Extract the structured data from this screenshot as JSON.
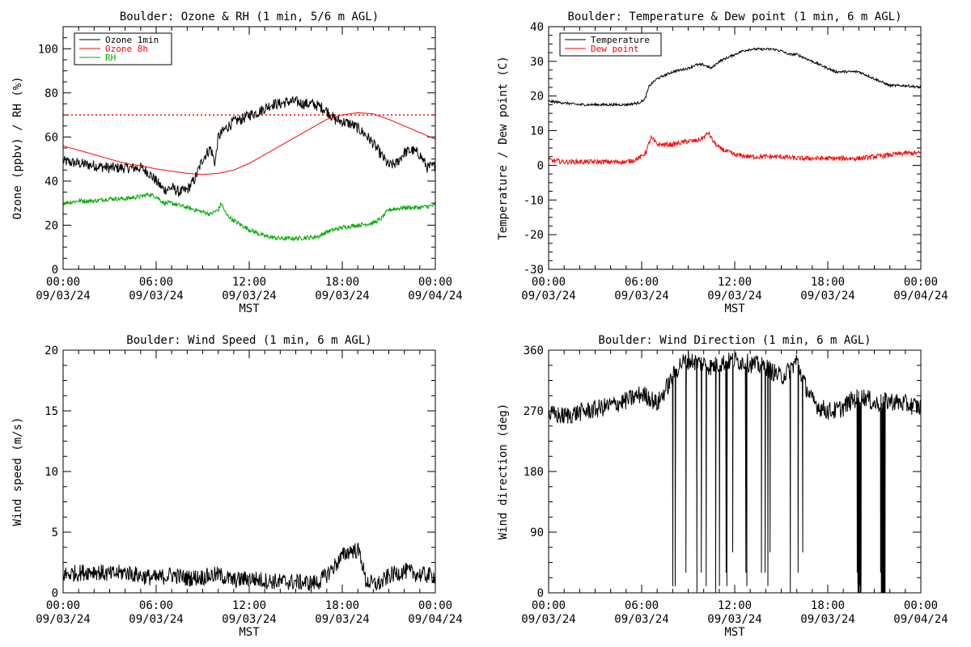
{
  "colors": {
    "black": "#000000",
    "red": "#ff0000",
    "green": "#00aa00"
  },
  "x_axis": {
    "ticks": [
      {
        "top": "00:00",
        "bottom": "09/03/24"
      },
      {
        "top": "06:00",
        "bottom": "09/03/24"
      },
      {
        "top": "12:00",
        "bottom": "09/03/24"
      },
      {
        "top": "18:00",
        "bottom": "09/03/24"
      },
      {
        "top": "00:00",
        "bottom": "09/04/24"
      }
    ],
    "label": "MST",
    "unit": "hours since 00:00 09/03/24",
    "range": [
      0,
      24
    ]
  },
  "chart_data": [
    {
      "type": "line",
      "title": "Boulder: Ozone & RH (1 min, 5/6 m AGL)",
      "ylabel": "Ozone (ppbv) / RH (%)",
      "xlabel": "MST",
      "xlim": [
        0,
        24
      ],
      "ylim": [
        0,
        110
      ],
      "yticks": [
        0,
        20,
        40,
        60,
        80,
        100
      ],
      "legend_position": "top-left",
      "reference_line": {
        "y": 70,
        "style": "dotted",
        "color": "#ff0000"
      },
      "series": [
        {
          "name": "Ozone 1min",
          "color": "#000000",
          "noise": 2.5,
          "points": [
            [
              0,
              49
            ],
            [
              1,
              48
            ],
            [
              2,
              47
            ],
            [
              3,
              46
            ],
            [
              4,
              46
            ],
            [
              5,
              46
            ],
            [
              5.5,
              44
            ],
            [
              6,
              40
            ],
            [
              6.5,
              36
            ],
            [
              7,
              37
            ],
            [
              7.5,
              35
            ],
            [
              8,
              36
            ],
            [
              8.5,
              41
            ],
            [
              9,
              50
            ],
            [
              9.5,
              55
            ],
            [
              9.8,
              48
            ],
            [
              10,
              60
            ],
            [
              10.5,
              64
            ],
            [
              11,
              67
            ],
            [
              11.5,
              68
            ],
            [
              12,
              70
            ],
            [
              12.5,
              71
            ],
            [
              13,
              73
            ],
            [
              13.5,
              75
            ],
            [
              14,
              75
            ],
            [
              14.5,
              76
            ],
            [
              15,
              76
            ],
            [
              15.5,
              75
            ],
            [
              16,
              75
            ],
            [
              16.5,
              74
            ],
            [
              17,
              72
            ],
            [
              17.5,
              68
            ],
            [
              18,
              67
            ],
            [
              18.5,
              66
            ],
            [
              19,
              64
            ],
            [
              19.5,
              61
            ],
            [
              20,
              57
            ],
            [
              20.5,
              52
            ],
            [
              21,
              47
            ],
            [
              21.5,
              48
            ],
            [
              22,
              53
            ],
            [
              22.5,
              54
            ],
            [
              23,
              52
            ],
            [
              23.5,
              46
            ],
            [
              24,
              47
            ]
          ]
        },
        {
          "name": "Ozone 8h",
          "color": "#ff0000",
          "noise": 0,
          "points": [
            [
              0,
              56
            ],
            [
              1,
              54
            ],
            [
              2,
              52
            ],
            [
              3,
              50
            ],
            [
              4,
              48
            ],
            [
              5,
              47
            ],
            [
              6,
              45.5
            ],
            [
              7,
              44.5
            ],
            [
              8,
              43.5
            ],
            [
              9,
              43
            ],
            [
              10,
              43.5
            ],
            [
              11,
              45
            ],
            [
              12,
              48
            ],
            [
              13,
              52
            ],
            [
              14,
              56
            ],
            [
              15,
              60
            ],
            [
              16,
              64
            ],
            [
              17,
              68
            ],
            [
              18,
              70
            ],
            [
              19,
              71
            ],
            [
              20,
              70.5
            ],
            [
              21,
              68
            ],
            [
              22,
              65
            ],
            [
              23,
              62
            ],
            [
              24,
              59
            ]
          ]
        },
        {
          "name": "RH",
          "color": "#00aa00",
          "noise": 1,
          "points": [
            [
              0,
              30
            ],
            [
              1,
              31
            ],
            [
              2,
              31
            ],
            [
              3,
              32
            ],
            [
              4,
              32
            ],
            [
              5,
              33
            ],
            [
              5.5,
              34
            ],
            [
              6,
              33
            ],
            [
              6.5,
              30
            ],
            [
              7,
              30
            ],
            [
              8,
              28
            ],
            [
              8.5,
              27
            ],
            [
              9,
              26
            ],
            [
              9.5,
              25
            ],
            [
              10,
              27
            ],
            [
              10.2,
              30
            ],
            [
              10.5,
              25
            ],
            [
              11,
              22
            ],
            [
              11.5,
              20
            ],
            [
              12,
              18
            ],
            [
              13,
              15
            ],
            [
              14,
              14
            ],
            [
              15,
              14
            ],
            [
              16,
              14.5
            ],
            [
              16.5,
              15
            ],
            [
              17,
              17
            ],
            [
              18,
              19
            ],
            [
              19,
              20
            ],
            [
              20,
              21
            ],
            [
              20.5,
              23
            ],
            [
              21,
              27
            ],
            [
              22,
              28
            ],
            [
              23,
              28
            ],
            [
              24,
              29
            ]
          ]
        }
      ]
    },
    {
      "type": "line",
      "title": "Boulder: Temperature & Dew point (1 min, 6 m AGL)",
      "ylabel": "Temperature / Dew point (C)",
      "xlabel": "MST",
      "xlim": [
        0,
        24
      ],
      "ylim": [
        -30,
        40
      ],
      "yticks": [
        -30,
        -20,
        -10,
        0,
        10,
        20,
        30,
        40
      ],
      "legend_position": "top-left",
      "series": [
        {
          "name": "Temperature",
          "color": "#000000",
          "noise": 0.35,
          "points": [
            [
              0,
              18.5
            ],
            [
              1,
              18
            ],
            [
              2,
              17.5
            ],
            [
              3,
              17.5
            ],
            [
              4,
              17.5
            ],
            [
              5,
              17.5
            ],
            [
              5.8,
              18
            ],
            [
              6.2,
              19
            ],
            [
              6.5,
              23
            ],
            [
              7,
              25
            ],
            [
              7.5,
              26
            ],
            [
              8,
              27
            ],
            [
              8.5,
              27.5
            ],
            [
              9,
              28
            ],
            [
              9.5,
              29
            ],
            [
              10,
              29
            ],
            [
              10.5,
              28
            ],
            [
              11,
              30
            ],
            [
              11.5,
              31
            ],
            [
              12,
              32
            ],
            [
              12.5,
              33
            ],
            [
              13,
              33.5
            ],
            [
              13.5,
              33.5
            ],
            [
              14,
              33.5
            ],
            [
              14.5,
              33.5
            ],
            [
              15,
              33
            ],
            [
              15.5,
              32
            ],
            [
              16,
              32
            ],
            [
              16.5,
              31
            ],
            [
              17,
              30
            ],
            [
              17.5,
              29
            ],
            [
              18,
              28
            ],
            [
              18.5,
              27
            ],
            [
              19,
              27
            ],
            [
              20,
              27
            ],
            [
              20.5,
              26
            ],
            [
              21,
              25
            ],
            [
              21.5,
              24
            ],
            [
              22,
              23
            ],
            [
              23,
              23
            ],
            [
              24,
              22.5
            ]
          ]
        },
        {
          "name": "Dew point",
          "color": "#ff0000",
          "noise": 0.7,
          "points": [
            [
              0,
              1.5
            ],
            [
              1,
              1
            ],
            [
              2,
              1
            ],
            [
              3,
              1
            ],
            [
              4,
              1
            ],
            [
              5,
              1
            ],
            [
              5.5,
              1.5
            ],
            [
              6,
              2.5
            ],
            [
              6.3,
              4
            ],
            [
              6.6,
              8
            ],
            [
              7,
              6
            ],
            [
              7.5,
              6
            ],
            [
              8,
              6
            ],
            [
              8.5,
              6.5
            ],
            [
              9,
              7
            ],
            [
              9.5,
              7
            ],
            [
              10,
              8
            ],
            [
              10.3,
              9.5
            ],
            [
              10.6,
              7
            ],
            [
              11,
              5
            ],
            [
              11.5,
              4
            ],
            [
              12,
              3
            ],
            [
              13,
              2.5
            ],
            [
              14,
              2.5
            ],
            [
              15,
              2.5
            ],
            [
              16,
              2
            ],
            [
              17,
              2
            ],
            [
              18,
              2
            ],
            [
              19,
              2
            ],
            [
              20,
              2
            ],
            [
              21,
              2.5
            ],
            [
              22,
              3
            ],
            [
              23,
              3.5
            ],
            [
              24,
              3.5
            ]
          ]
        }
      ]
    },
    {
      "type": "line",
      "title": "Boulder: Wind Speed (1 min, 6 m AGL)",
      "ylabel": "Wind speed (m/s)",
      "xlabel": "MST",
      "xlim": [
        0,
        24
      ],
      "ylim": [
        0,
        20
      ],
      "yticks": [
        0,
        5,
        10,
        15,
        20
      ],
      "series": [
        {
          "name": "",
          "color": "#000000",
          "noise": 0.7,
          "floor": 0,
          "points": [
            [
              0,
              1.5
            ],
            [
              2,
              1.8
            ],
            [
              3,
              1.5
            ],
            [
              4,
              1.7
            ],
            [
              5,
              1.4
            ],
            [
              6,
              1.2
            ],
            [
              7,
              1.5
            ],
            [
              8,
              1.2
            ],
            [
              9,
              1.3
            ],
            [
              10,
              1.5
            ],
            [
              11,
              1
            ],
            [
              12,
              1.2
            ],
            [
              13,
              1
            ],
            [
              14,
              0.9
            ],
            [
              15,
              0.9
            ],
            [
              16,
              0.8
            ],
            [
              16.5,
              0.9
            ],
            [
              17,
              1.5
            ],
            [
              17.5,
              2.2
            ],
            [
              18,
              3
            ],
            [
              18.5,
              3.5
            ],
            [
              19,
              3.5
            ],
            [
              19.2,
              3
            ],
            [
              19.5,
              1
            ],
            [
              20,
              0.7
            ],
            [
              20.5,
              0.8
            ],
            [
              21,
              1.4
            ],
            [
              22,
              1.8
            ],
            [
              23,
              1.5
            ],
            [
              24,
              1.4
            ]
          ]
        }
      ]
    },
    {
      "type": "line",
      "title": "Boulder: Wind Direction (1 min, 6 m AGL)",
      "ylabel": "Wind direction (deg)",
      "xlabel": "MST",
      "xlim": [
        0,
        24
      ],
      "ylim": [
        0,
        360
      ],
      "yticks": [
        0,
        90,
        180,
        270,
        360
      ],
      "series": [
        {
          "name": "",
          "color": "#000000",
          "noise": 14,
          "floor": 0,
          "ceil": 360,
          "points": [
            [
              0,
              265
            ],
            [
              1,
              262
            ],
            [
              2,
              268
            ],
            [
              3,
              272
            ],
            [
              4,
              278
            ],
            [
              5,
              285
            ],
            [
              5.5,
              290
            ],
            [
              6,
              295
            ],
            [
              6.5,
              290
            ],
            [
              7,
              280
            ],
            [
              7.5,
              300
            ],
            [
              8,
              320
            ],
            [
              8.5,
              340
            ],
            [
              9,
              345
            ],
            [
              10,
              340
            ],
            [
              10.5,
              335
            ],
            [
              11,
              340
            ],
            [
              12,
              345
            ],
            [
              13,
              340
            ],
            [
              14,
              335
            ],
            [
              15,
              320
            ],
            [
              15.5,
              330
            ],
            [
              16,
              345
            ],
            [
              16.5,
              310
            ],
            [
              17,
              285
            ],
            [
              17.5,
              275
            ],
            [
              18,
              270
            ],
            [
              18.5,
              270
            ],
            [
              19,
              275
            ],
            [
              19.5,
              285
            ],
            [
              20,
              290
            ],
            [
              20.5,
              290
            ],
            [
              21,
              280
            ],
            [
              22,
              285
            ],
            [
              23,
              280
            ],
            [
              24,
              275
            ]
          ]
        }
      ],
      "dropouts": {
        "ranges": [
          [
            8.0,
            16.8
          ],
          [
            19.9,
            20.15
          ],
          [
            21.4,
            21.7
          ]
        ],
        "count": 60,
        "min_values": [
          0,
          10,
          30,
          60
        ]
      }
    }
  ]
}
